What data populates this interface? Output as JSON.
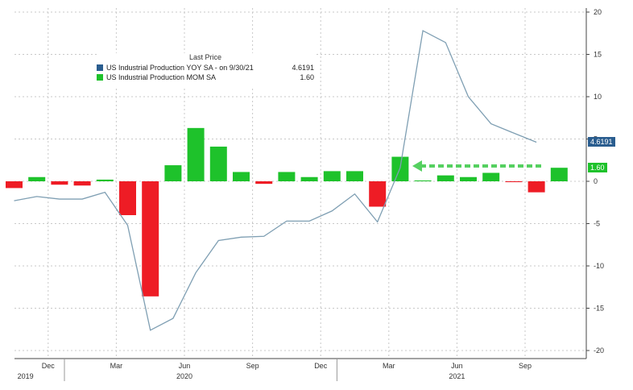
{
  "chart_data": {
    "type": "bar",
    "legend": {
      "title": "Last Price",
      "entries": [
        {
          "label": "US Industrial Production YOY SA -  on 9/30/21",
          "value": "4.6191",
          "color": "#2a5d8f"
        },
        {
          "label": "US Industrial Production MOM SA",
          "value": "1.60",
          "color": "#1ec22b"
        }
      ]
    },
    "last_values": {
      "line": "4.6191",
      "bars": "1.60"
    },
    "line_color": "#7f9fb3",
    "up_color": "#1ec22b",
    "down_color": "#ee1c25",
    "ylim": [
      -20,
      20
    ],
    "y_ticks": [
      "20",
      "15",
      "10",
      "5",
      "0",
      "-5",
      "-10",
      "-15",
      "-20"
    ],
    "x_ticks": [
      "Dec",
      "Mar",
      "Jun",
      "Sep",
      "Dec",
      "Mar",
      "Jun",
      "Sep"
    ],
    "year_labels": [
      "2019",
      "2020",
      "2021"
    ],
    "series": [
      {
        "name": "US Industrial Production MOM SA",
        "type": "bar",
        "values": [
          -0.8,
          0.5,
          -0.4,
          -0.5,
          0.2,
          -4.0,
          -13.6,
          1.9,
          6.3,
          4.1,
          1.1,
          -0.3,
          1.1,
          0.5,
          1.2,
          1.2,
          -3.0,
          2.9,
          0.1,
          0.7,
          0.5,
          1.0,
          -0.1,
          -1.3,
          1.6
        ]
      },
      {
        "name": "US Industrial Production YOY SA",
        "type": "line",
        "values": [
          -2.3,
          -1.8,
          -2.1,
          -2.1,
          -1.3,
          -5.2,
          -17.6,
          -16.2,
          -10.8,
          -7.0,
          -6.6,
          -6.5,
          -4.7,
          -4.7,
          -3.5,
          -1.5,
          -4.8,
          1.6,
          17.8,
          16.4,
          10.0,
          6.8,
          5.7,
          4.6191
        ]
      }
    ]
  }
}
